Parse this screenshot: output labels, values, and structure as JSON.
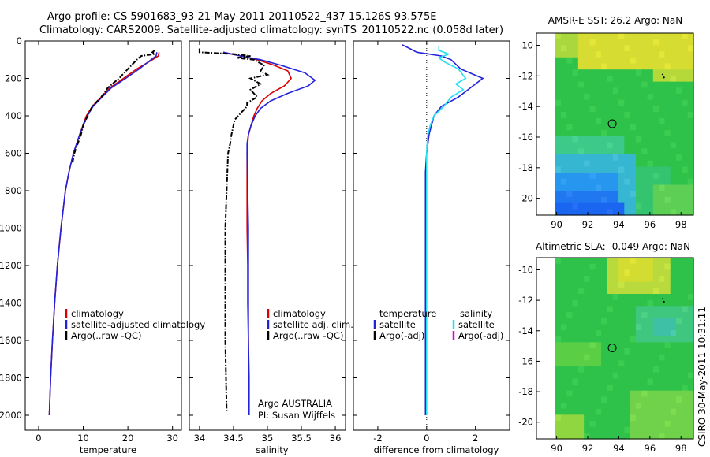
{
  "header": {
    "line1": "Argo profile: CS 5901683_93 21-May-2011 20110522_437 15.126S 93.575E",
    "line2": "Climatology: CARS2009. Satellite-adjusted climatology: synTS_20110522.nc (0.058d later)"
  },
  "side_stamp": "CSIRO 30-May-2011 10:31:11",
  "colors": {
    "red": "#dd0000",
    "blue": "#2222dd",
    "black": "#000000",
    "cyan": "#22e0f0",
    "magenta": "#dd00dd"
  },
  "chart_data": [
    {
      "id": "temperature",
      "type": "line",
      "xlabel": "temperature",
      "xticks": [
        0,
        10,
        20,
        30
      ],
      "xlim": [
        -3,
        32
      ],
      "ylim": [
        0,
        2080
      ],
      "yticks": [
        0,
        200,
        400,
        600,
        800,
        1000,
        1200,
        1400,
        1600,
        1800,
        2000
      ],
      "yreversed": true,
      "legend": [
        {
          "label": "climatology",
          "color": "#dd0000"
        },
        {
          "label": "satellite-adjusted climatology",
          "color": "#2222dd"
        },
        {
          "label": "Argo(..raw -QC)",
          "color": "#000000"
        }
      ],
      "series": [
        {
          "color": "#dd0000",
          "depth": [
            60,
            80,
            100,
            150,
            200,
            250,
            300,
            350,
            400,
            500,
            600,
            700,
            800,
            1000,
            1200,
            1400,
            1600,
            1800,
            2000
          ],
          "values": [
            27,
            26.8,
            25.5,
            22,
            19,
            16,
            14,
            12,
            10.7,
            9.2,
            7.8,
            6.8,
            6,
            5,
            4.2,
            3.6,
            3.1,
            2.7,
            2.4
          ]
        },
        {
          "color": "#2222dd",
          "depth": [
            60,
            80,
            100,
            150,
            200,
            250,
            300,
            350,
            400,
            500,
            600,
            700,
            800,
            1000,
            1200,
            1400,
            1600,
            1800,
            2000
          ],
          "values": [
            26.5,
            26.3,
            25.2,
            22.5,
            19.5,
            16.3,
            14.2,
            12.2,
            10.9,
            9.2,
            7.8,
            6.8,
            6,
            5,
            4.2,
            3.6,
            3.1,
            2.7,
            2.4
          ]
        },
        {
          "color": "#000000",
          "dash": true,
          "depth": [
            50,
            60,
            70,
            80,
            100,
            150,
            200,
            250,
            300,
            350,
            400,
            450,
            500,
            600,
            650
          ],
          "values": [
            26,
            25.5,
            26,
            23,
            22,
            20,
            18,
            15.5,
            14,
            12,
            11,
            10,
            9.5,
            8,
            7.6
          ]
        }
      ]
    },
    {
      "id": "salinity",
      "type": "line",
      "xlabel": "salinity",
      "xticks": [
        34,
        34.5,
        35,
        35.5,
        36
      ],
      "xlim": [
        33.85,
        36.15
      ],
      "ylim": [
        0,
        2080
      ],
      "yreversed": true,
      "legend": [
        {
          "label": "climatology",
          "color": "#dd0000"
        },
        {
          "label": "satellite adj. clim.",
          "color": "#2222dd"
        },
        {
          "label": "Argo(..raw -QC)",
          "color": "#000000"
        }
      ],
      "annotation": [
        "Argo AUSTRALIA",
        "PI: Susan Wijffels"
      ],
      "series": [
        {
          "color": "#dd0000",
          "depth": [
            60,
            80,
            100,
            130,
            160,
            200,
            240,
            280,
            320,
            360,
            400,
            450,
            500,
            550,
            600,
            800,
            1000,
            1200,
            1400,
            1600,
            1800,
            2000
          ],
          "values": [
            34.35,
            34.6,
            34.85,
            35.1,
            35.3,
            35.35,
            35.25,
            35.05,
            34.92,
            34.85,
            34.8,
            34.76,
            34.72,
            34.71,
            34.7,
            34.7,
            34.7,
            34.71,
            34.71,
            34.72,
            34.72,
            34.72
          ]
        },
        {
          "color": "#2222dd",
          "depth": [
            60,
            80,
            100,
            130,
            170,
            210,
            240,
            280,
            320,
            360,
            400,
            450,
            500,
            550,
            600,
            800,
            1000,
            1200,
            1400,
            1600,
            1800,
            2000
          ],
          "values": [
            34.35,
            34.6,
            34.9,
            35.2,
            35.55,
            35.7,
            35.6,
            35.3,
            35.05,
            34.9,
            34.82,
            34.76,
            34.72,
            34.7,
            34.7,
            34.71,
            34.72,
            34.72,
            34.72,
            34.72,
            34.73,
            34.73
          ]
        },
        {
          "color": "#000000",
          "dash": true,
          "depth": [
            40,
            60,
            70,
            80,
            90,
            100,
            130,
            160,
            180,
            200,
            230,
            260,
            300,
            330,
            350,
            380,
            420,
            450,
            500,
            550,
            600,
            800,
            1000,
            1200,
            1400,
            1600,
            1800,
            1980
          ],
          "values": [
            34.0,
            34.0,
            34.5,
            34.75,
            34.55,
            34.8,
            34.95,
            34.9,
            35.0,
            34.75,
            34.9,
            34.75,
            34.85,
            34.7,
            34.7,
            34.62,
            34.52,
            34.5,
            34.47,
            34.45,
            34.42,
            34.4,
            34.38,
            34.38,
            34.38,
            34.38,
            34.39,
            34.4
          ]
        }
      ]
    },
    {
      "id": "difference",
      "type": "line",
      "xlabel": "difference from climatology",
      "xticks": [
        -2,
        0,
        2
      ],
      "xlim": [
        -3,
        3.4
      ],
      "ylim": [
        0,
        2080
      ],
      "yreversed": true,
      "legend_cols": [
        {
          "heading": "temperature",
          "items": [
            {
              "label": "satellite",
              "color": "#2222dd"
            },
            {
              "label": "Argo(-adj)",
              "color": "#000000"
            }
          ]
        },
        {
          "heading": "salinity",
          "items": [
            {
              "label": "satellite",
              "color": "#22e0f0"
            },
            {
              "label": "Argo(-adj)",
              "color": "#dd00dd"
            }
          ]
        }
      ],
      "series": [
        {
          "color": "#2222dd",
          "depth": [
            20,
            40,
            60,
            80,
            100,
            150,
            200,
            250,
            300,
            350,
            400,
            500,
            600,
            700,
            800,
            1000,
            1200,
            1400,
            1600,
            1800,
            2000
          ],
          "values": [
            -1,
            -0.7,
            -0.4,
            0.6,
            1.0,
            1.4,
            2.3,
            1.8,
            1.3,
            0.6,
            0.3,
            0.1,
            0,
            -0.05,
            -0.05,
            -0.05,
            -0.05,
            -0.05,
            -0.05,
            -0.05,
            -0.05
          ]
        },
        {
          "color": "#22e0f0",
          "depth": [
            30,
            50,
            70,
            90,
            110,
            150,
            200,
            230,
            260,
            300,
            350,
            400,
            450,
            500,
            550,
            600,
            800,
            1000,
            1200,
            1400,
            1600,
            1800,
            2000
          ],
          "values": [
            0.5,
            0.5,
            0.9,
            0.5,
            0.7,
            1.3,
            1.6,
            1.2,
            1.5,
            1.0,
            0.7,
            0.3,
            0.15,
            0.05,
            0.02,
            0,
            0,
            0,
            0,
            0,
            0,
            0,
            0
          ]
        }
      ]
    },
    {
      "id": "sst_map",
      "type": "heatmap",
      "title": "AMSR-E SST: 26.2 Argo: NaN",
      "xticks": [
        90,
        92,
        94,
        96,
        98
      ],
      "yticks": [
        -10,
        -12,
        -14,
        -16,
        -18,
        -20
      ],
      "xlim": [
        88.7,
        98.8
      ],
      "ylim": [
        -21.1,
        -9.2
      ],
      "marker": {
        "lon": 93.575,
        "lat": -15.126
      }
    },
    {
      "id": "sla_map",
      "type": "heatmap",
      "title": "Altimetric SLA: -0.049 Argo: NaN",
      "xticks": [
        90,
        92,
        94,
        96,
        98
      ],
      "yticks": [
        -10,
        -12,
        -14,
        -16,
        -18,
        -20
      ],
      "xlim": [
        88.7,
        98.8
      ],
      "ylim": [
        -21.1,
        -9.2
      ],
      "marker": {
        "lon": 93.575,
        "lat": -15.126
      }
    }
  ]
}
